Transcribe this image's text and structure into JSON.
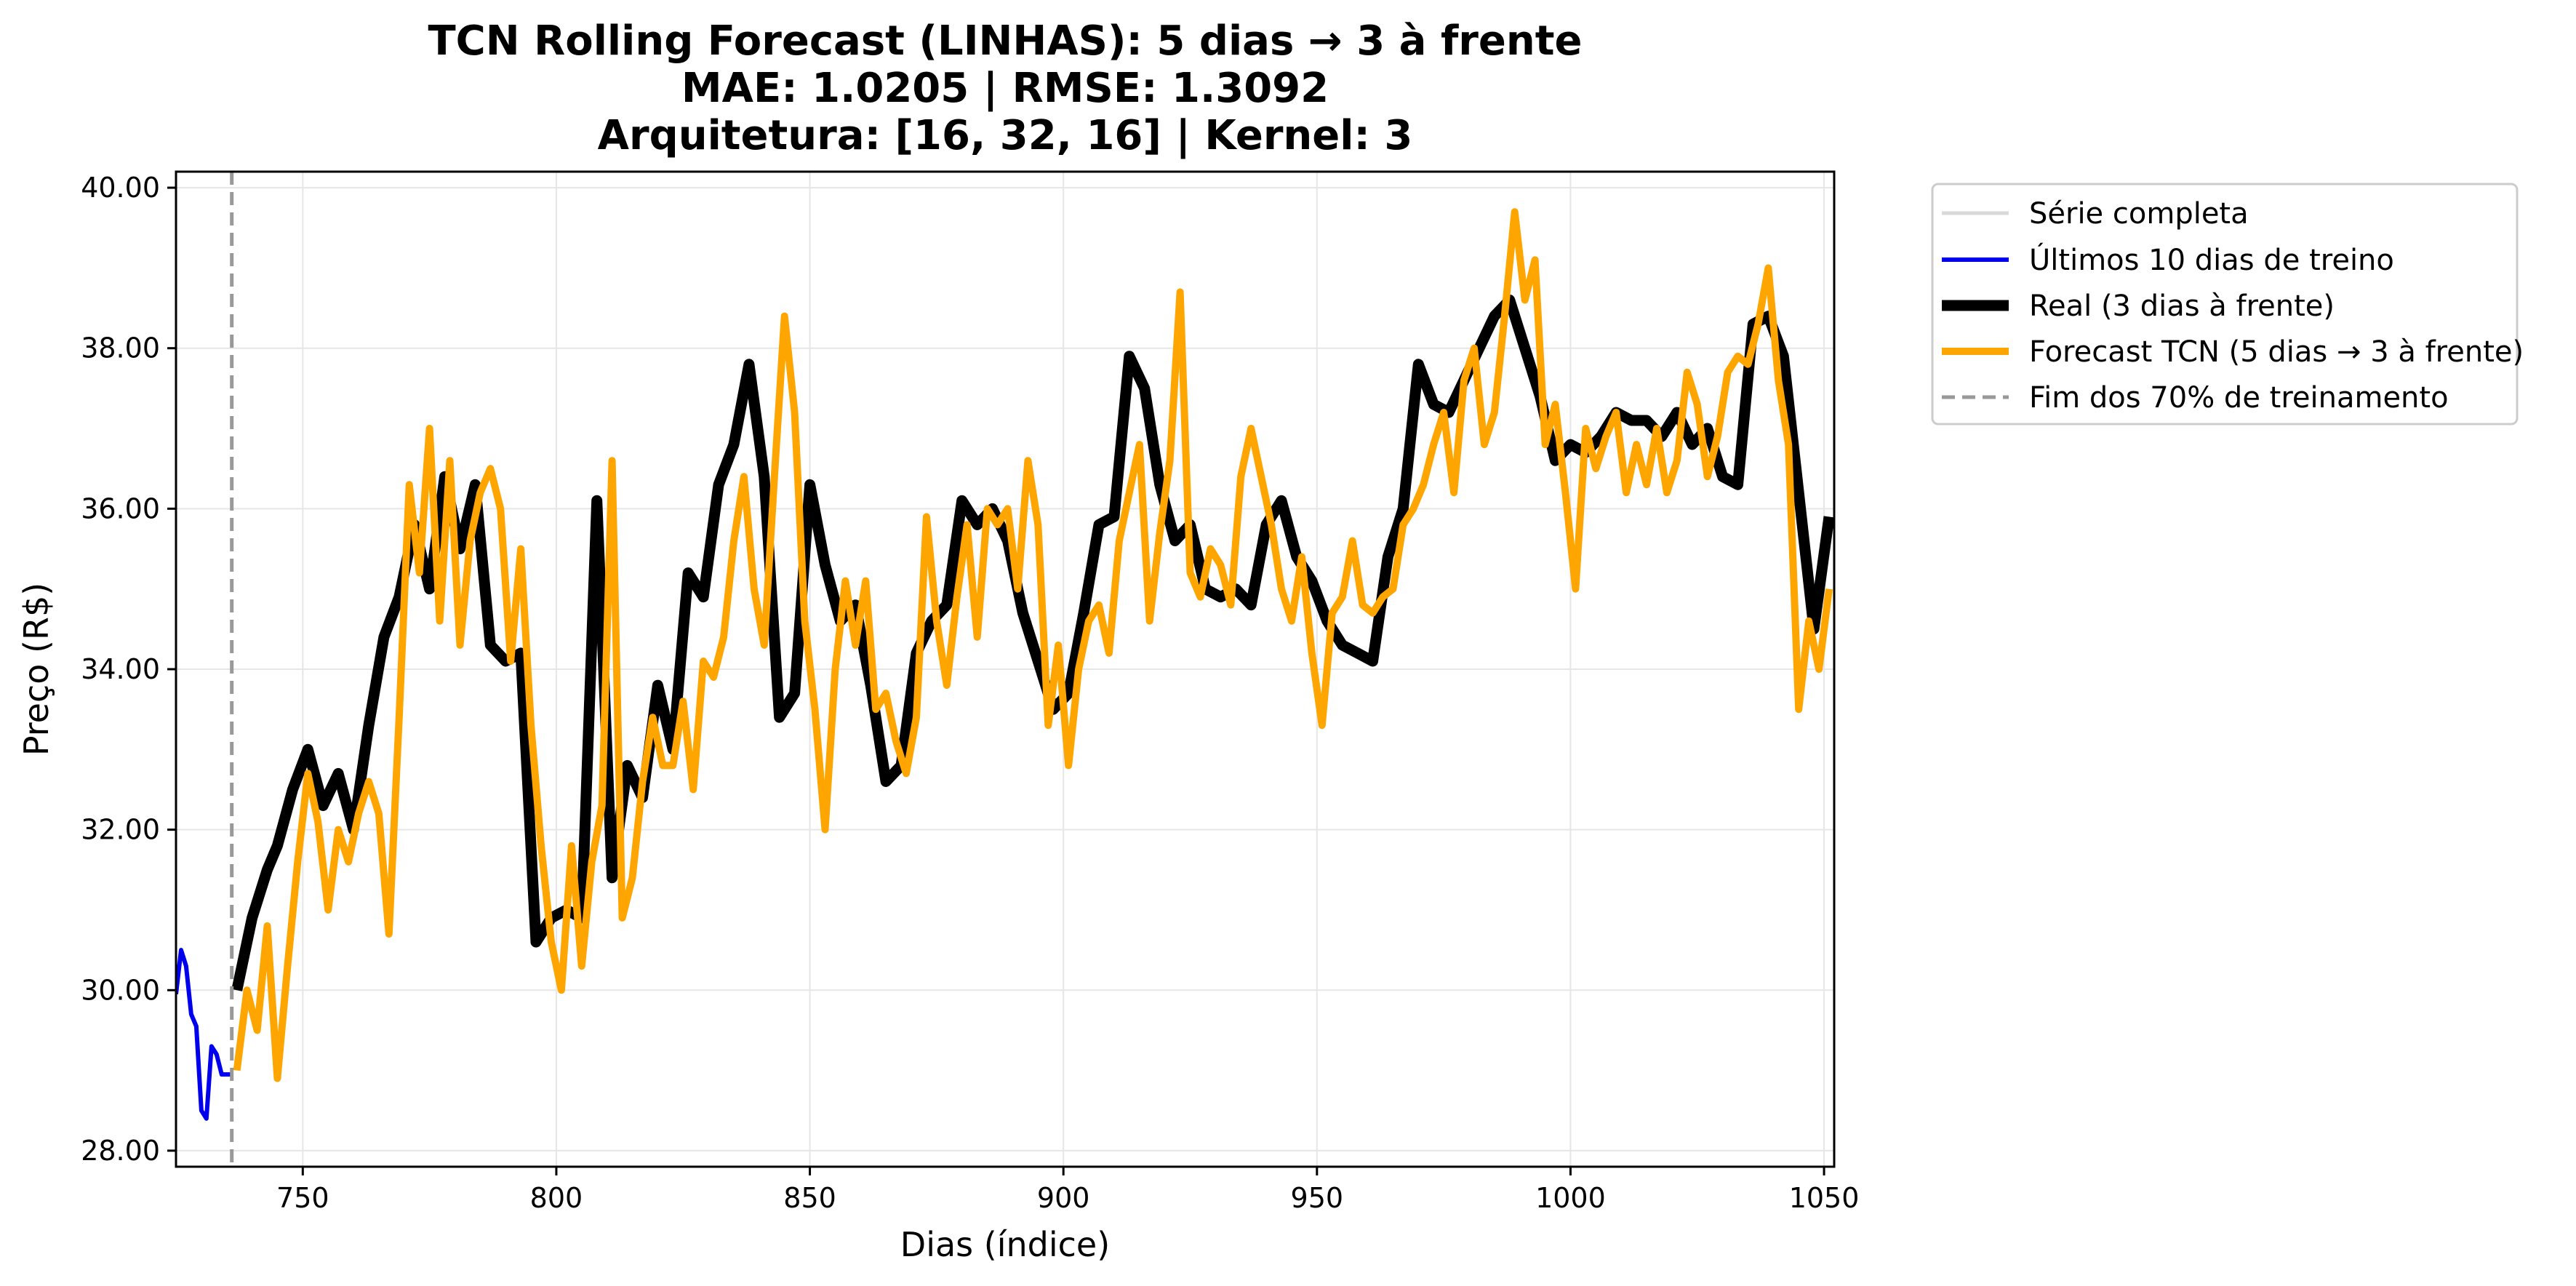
{
  "chart_data": {
    "type": "line",
    "title": [
      "TCN Rolling Forecast (LINHAS): 5 dias → 3 à frente",
      "MAE: 1.0205 | RMSE: 1.3092",
      "Arquitetura: [16, 32, 16] | Kernel: 3"
    ],
    "xlabel": "Dias (índice)",
    "ylabel": "Preço (R$)",
    "xlim": [
      725,
      1052
    ],
    "ylim": [
      27.8,
      40.2
    ],
    "xticks": [
      750,
      800,
      850,
      900,
      950,
      1000,
      1050
    ],
    "yticks": [
      28,
      30,
      32,
      34,
      36,
      38,
      40
    ],
    "ytick_labels": [
      "28.00",
      "30.00",
      "32.00",
      "34.00",
      "36.00",
      "38.00",
      "40.00"
    ],
    "grid": true,
    "legend_position": "outside-right-top",
    "vline": {
      "x": 736,
      "color": "#999999",
      "style": "dashed",
      "name": "Fim dos 70% de treinamento"
    },
    "series": [
      {
        "name": "Série completa",
        "color": "#d9d9d9",
        "x": [],
        "y": []
      },
      {
        "name": "Últimos 10 dias de treino",
        "color": "#0000ee",
        "x": [
          725,
          726,
          727,
          728,
          729,
          730,
          731,
          732,
          733,
          734,
          735,
          736
        ],
        "y": [
          29.95,
          30.5,
          30.3,
          29.7,
          29.55,
          28.5,
          28.4,
          29.3,
          29.2,
          28.95,
          28.95,
          28.95
        ]
      },
      {
        "name": "Real (3 dias à frente)",
        "color": "#000000",
        "x": [
          737,
          740,
          743,
          745,
          748,
          751,
          754,
          757,
          760,
          763,
          766,
          769,
          772,
          775,
          778,
          781,
          784,
          787,
          790,
          793,
          796,
          799,
          802,
          805,
          808,
          811,
          814,
          817,
          820,
          823,
          826,
          829,
          832,
          835,
          838,
          841,
          844,
          847,
          850,
          853,
          856,
          859,
          862,
          865,
          868,
          871,
          874,
          877,
          880,
          883,
          886,
          889,
          892,
          895,
          898,
          901,
          904,
          907,
          910,
          913,
          916,
          919,
          922,
          925,
          928,
          931,
          934,
          937,
          940,
          943,
          946,
          949,
          952,
          955,
          958,
          961,
          964,
          967,
          970,
          973,
          976,
          979,
          982,
          985,
          988,
          991,
          994,
          997,
          1000,
          1003,
          1006,
          1009,
          1012,
          1015,
          1018,
          1021,
          1024,
          1027,
          1030,
          1033,
          1036,
          1039,
          1042,
          1045,
          1048,
          1051
        ],
        "y": [
          30.0,
          30.9,
          31.5,
          31.8,
          32.5,
          33.0,
          32.3,
          32.7,
          32.0,
          33.3,
          34.4,
          34.9,
          35.8,
          35.0,
          36.4,
          35.5,
          36.3,
          34.3,
          34.1,
          34.2,
          30.6,
          30.9,
          31.0,
          30.9,
          36.1,
          31.4,
          32.8,
          32.4,
          33.8,
          33.0,
          35.2,
          34.9,
          36.3,
          36.8,
          37.8,
          36.4,
          33.4,
          33.7,
          36.3,
          35.3,
          34.6,
          34.8,
          33.8,
          32.6,
          32.8,
          34.2,
          34.6,
          34.8,
          36.1,
          35.8,
          36.0,
          35.6,
          34.7,
          34.1,
          33.5,
          33.7,
          34.7,
          35.8,
          35.9,
          37.9,
          37.5,
          36.3,
          35.6,
          35.8,
          35.0,
          34.9,
          35.0,
          34.8,
          35.8,
          36.1,
          35.4,
          35.1,
          34.6,
          34.3,
          34.2,
          34.1,
          35.4,
          36.0,
          37.8,
          37.3,
          37.2,
          37.6,
          38.0,
          38.4,
          38.6,
          38.0,
          37.4,
          36.6,
          36.8,
          36.7,
          36.9,
          37.2,
          37.1,
          37.1,
          36.9,
          37.2,
          36.8,
          37.0,
          36.4,
          36.3,
          38.3,
          38.4,
          37.9,
          36.2,
          34.5,
          35.9
        ]
      },
      {
        "name": "Forecast TCN (5 dias → 3 à frente)",
        "color": "#ffa500",
        "x": [
          737,
          739,
          741,
          743,
          745,
          747,
          749,
          751,
          753,
          755,
          757,
          759,
          761,
          763,
          765,
          767,
          769,
          771,
          773,
          775,
          777,
          779,
          781,
          783,
          785,
          787,
          789,
          791,
          793,
          795,
          797,
          799,
          801,
          803,
          805,
          807,
          809,
          811,
          813,
          815,
          817,
          819,
          821,
          823,
          825,
          827,
          829,
          831,
          833,
          835,
          837,
          839,
          841,
          843,
          845,
          847,
          849,
          851,
          853,
          855,
          857,
          859,
          861,
          863,
          865,
          867,
          869,
          871,
          873,
          875,
          877,
          879,
          881,
          883,
          885,
          887,
          889,
          891,
          893,
          895,
          897,
          899,
          901,
          903,
          905,
          907,
          909,
          911,
          913,
          915,
          917,
          919,
          921,
          923,
          925,
          927,
          929,
          931,
          933,
          935,
          937,
          939,
          941,
          943,
          945,
          947,
          949,
          951,
          953,
          955,
          957,
          959,
          961,
          963,
          965,
          967,
          969,
          971,
          973,
          975,
          977,
          979,
          981,
          983,
          985,
          987,
          989,
          991,
          993,
          995,
          997,
          999,
          1001,
          1003,
          1005,
          1007,
          1009,
          1011,
          1013,
          1015,
          1017,
          1019,
          1021,
          1023,
          1025,
          1027,
          1029,
          1031,
          1033,
          1035,
          1037,
          1039,
          1041,
          1043,
          1045,
          1047,
          1049,
          1051
        ],
        "y": [
          29.0,
          30.0,
          29.5,
          30.8,
          28.9,
          30.3,
          31.6,
          32.7,
          32.1,
          31.0,
          32.0,
          31.6,
          32.2,
          32.6,
          32.2,
          30.7,
          33.4,
          36.3,
          35.2,
          37.0,
          34.6,
          36.6,
          34.3,
          35.6,
          36.2,
          36.5,
          36.0,
          34.1,
          35.5,
          33.3,
          31.8,
          30.6,
          30.0,
          31.8,
          30.3,
          31.6,
          32.3,
          36.6,
          30.9,
          31.4,
          32.6,
          33.4,
          32.8,
          32.8,
          33.6,
          32.5,
          34.1,
          33.9,
          34.4,
          35.6,
          36.4,
          35.0,
          34.3,
          36.4,
          38.4,
          37.2,
          34.6,
          33.5,
          32.0,
          34.0,
          35.1,
          34.3,
          35.1,
          33.5,
          33.7,
          33.1,
          32.7,
          33.4,
          35.9,
          34.6,
          33.8,
          34.9,
          35.8,
          34.4,
          36.0,
          35.8,
          36.0,
          35.0,
          36.6,
          35.8,
          33.3,
          34.3,
          32.8,
          34.0,
          34.6,
          34.8,
          34.2,
          35.6,
          36.2,
          36.8,
          34.6,
          35.7,
          36.6,
          38.7,
          35.2,
          34.9,
          35.5,
          35.3,
          34.8,
          36.4,
          37.0,
          36.4,
          35.8,
          35.0,
          34.6,
          35.4,
          34.2,
          33.3,
          34.7,
          34.9,
          35.6,
          34.8,
          34.7,
          34.9,
          35.0,
          35.8,
          36.0,
          36.3,
          36.8,
          37.2,
          36.2,
          37.6,
          38.0,
          36.8,
          37.2,
          38.4,
          39.7,
          38.6,
          39.1,
          36.8,
          37.3,
          36.2,
          35.0,
          37.0,
          36.5,
          36.9,
          37.2,
          36.2,
          36.8,
          36.3,
          37.0,
          36.2,
          36.6,
          37.7,
          37.3,
          36.4,
          36.9,
          37.7,
          37.9,
          37.8,
          38.3,
          39.0,
          37.6,
          36.8,
          33.5,
          34.6,
          34.0,
          35.0
        ]
      }
    ]
  }
}
